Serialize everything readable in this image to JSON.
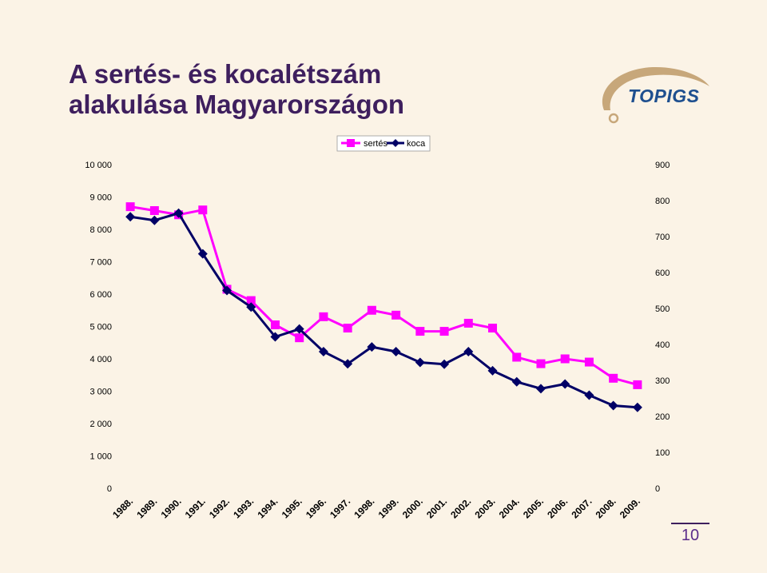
{
  "title": {
    "line1": "A sertés- és kocalétszám",
    "line2": "alakulása Magyarországon"
  },
  "logo": {
    "text": "TOPIGS"
  },
  "page_number": "10",
  "colors": {
    "title": "#3e1f5e",
    "sertes": "#ff00ff",
    "koca": "#000066",
    "background": "#fbf3e6"
  },
  "chart_data": {
    "type": "line",
    "categories": [
      "1988.",
      "1989.",
      "1990.",
      "1991.",
      "1992.",
      "1993.",
      "1994.",
      "1995.",
      "1996.",
      "1997.",
      "1998.",
      "1999.",
      "2000.",
      "2001.",
      "2002.",
      "2003.",
      "2004.",
      "2005.",
      "2006.",
      "2007.",
      "2008.",
      "2009."
    ],
    "y_left": {
      "range": [
        0,
        10000
      ],
      "ticks": [
        0,
        1000,
        2000,
        3000,
        4000,
        5000,
        6000,
        7000,
        8000,
        9000,
        10000
      ],
      "tick_labels": [
        "0",
        "1 000",
        "2 000",
        "3 000",
        "4 000",
        "5 000",
        "6 000",
        "7 000",
        "8 000",
        "9 000",
        "10 000"
      ]
    },
    "y_right": {
      "range": [
        0,
        900
      ],
      "ticks": [
        0,
        100,
        200,
        300,
        400,
        500,
        600,
        700,
        800,
        900
      ],
      "tick_labels": [
        "0",
        "100",
        "200",
        "300",
        "400",
        "500",
        "600",
        "700",
        "800",
        "900"
      ]
    },
    "series": [
      {
        "name": "sertés",
        "axis": "left",
        "marker": "square",
        "color": "#ff00ff",
        "values": [
          8700,
          8580,
          8450,
          8600,
          6150,
          5800,
          5050,
          4650,
          5300,
          4950,
          5500,
          5350,
          4850,
          4850,
          5100,
          4950,
          4050,
          3850,
          4000,
          3900,
          3400,
          3200
        ]
      },
      {
        "name": "koca",
        "axis": "right",
        "marker": "diamond",
        "color": "#000066",
        "values": [
          755,
          745,
          765,
          652,
          550,
          504,
          421,
          443,
          380,
          346,
          393,
          380,
          350,
          345,
          380,
          327,
          296,
          277,
          290,
          259,
          230,
          225
        ]
      }
    ],
    "legend": {
      "position": "top-center",
      "entries": [
        "sertés",
        "koca"
      ]
    },
    "grid": false
  }
}
